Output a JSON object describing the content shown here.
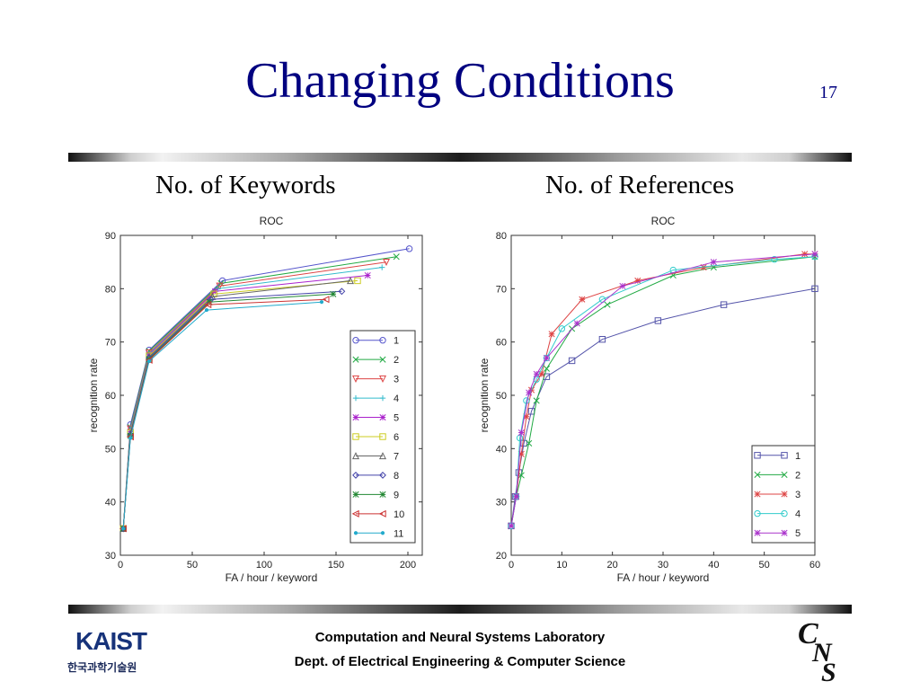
{
  "slide": {
    "title": "Changing Conditions",
    "page_number": "17",
    "subtitle_left": "No. of Keywords",
    "subtitle_right": "No. of References"
  },
  "footer": {
    "line1": "Computation and Neural Systems Laboratory",
    "line2": "Dept. of Electrical Engineering & Computer Science",
    "logo_left_main": "KAIST",
    "logo_left_sub": "한국과학기술원",
    "logo_right": "CNS"
  },
  "chart_data": [
    {
      "type": "line",
      "title": "ROC",
      "xlabel": "FA / hour / keyword",
      "ylabel": "recognition rate",
      "xlim": [
        0,
        210
      ],
      "ylim": [
        30,
        90
      ],
      "xticks": [
        0,
        50,
        100,
        150,
        200
      ],
      "yticks": [
        30,
        40,
        50,
        60,
        70,
        80,
        90
      ],
      "grid": false,
      "legend": "right-center",
      "series": [
        {
          "name": "1",
          "color": "#5555cc",
          "marker": "circle",
          "points": [
            [
              2,
              35
            ],
            [
              7,
              54.5
            ],
            [
              20,
              68.5
            ],
            [
              71,
              81.5
            ],
            [
              201,
              87.5
            ]
          ]
        },
        {
          "name": "2",
          "color": "#22aa44",
          "marker": "x",
          "points": [
            [
              2,
              35
            ],
            [
              7,
              54
            ],
            [
              20,
              68.3
            ],
            [
              70,
              81
            ],
            [
              192,
              86
            ]
          ]
        },
        {
          "name": "3",
          "color": "#dd4444",
          "marker": "tri-down",
          "points": [
            [
              2,
              35
            ],
            [
              7,
              53.7
            ],
            [
              20,
              68
            ],
            [
              69,
              80.5
            ],
            [
              185,
              85
            ]
          ]
        },
        {
          "name": "4",
          "color": "#33bbcc",
          "marker": "plus",
          "points": [
            [
              2,
              35
            ],
            [
              7,
              53.5
            ],
            [
              20,
              67.8
            ],
            [
              68,
              80
            ],
            [
              182,
              84
            ]
          ]
        },
        {
          "name": "5",
          "color": "#aa22cc",
          "marker": "star",
          "points": [
            [
              2,
              35
            ],
            [
              7,
              53.2
            ],
            [
              20,
              67.6
            ],
            [
              66,
              79.5
            ],
            [
              172,
              82.5
            ]
          ]
        },
        {
          "name": "6",
          "color": "#cccc22",
          "marker": "square",
          "points": [
            [
              2,
              35
            ],
            [
              7,
              53
            ],
            [
              20,
              67.4
            ],
            [
              65,
              79
            ],
            [
              165,
              81.5
            ]
          ]
        },
        {
          "name": "7",
          "color": "#666666",
          "marker": "tri-up",
          "points": [
            [
              2,
              35
            ],
            [
              7,
              52.8
            ],
            [
              20,
              67.2
            ],
            [
              64,
              78.5
            ],
            [
              160,
              81.5
            ]
          ]
        },
        {
          "name": "8",
          "color": "#4444aa",
          "marker": "diamond",
          "points": [
            [
              2,
              35
            ],
            [
              7,
              52.6
            ],
            [
              20,
              67
            ],
            [
              63,
              78
            ],
            [
              154,
              79.5
            ]
          ]
        },
        {
          "name": "9",
          "color": "#228833",
          "marker": "star",
          "points": [
            [
              2,
              35
            ],
            [
              7,
              52.4
            ],
            [
              20,
              66.8
            ],
            [
              62,
              77.5
            ],
            [
              148,
              79
            ]
          ]
        },
        {
          "name": "10",
          "color": "#cc3333",
          "marker": "tri-left",
          "points": [
            [
              2,
              35
            ],
            [
              7,
              52.2
            ],
            [
              20,
              66.6
            ],
            [
              61,
              77
            ],
            [
              143,
              78
            ]
          ]
        },
        {
          "name": "11",
          "color": "#22aacc",
          "marker": "dot",
          "points": [
            [
              2,
              35
            ],
            [
              7,
              52
            ],
            [
              20,
              66.4
            ],
            [
              60,
              76
            ],
            [
              140,
              77.5
            ]
          ]
        }
      ]
    },
    {
      "type": "line",
      "title": "ROC",
      "xlabel": "FA / hour / keyword",
      "ylabel": "recognition rate",
      "xlim": [
        0,
        60
      ],
      "ylim": [
        20,
        80
      ],
      "xticks": [
        0,
        10,
        20,
        30,
        40,
        50,
        60
      ],
      "yticks": [
        20,
        30,
        40,
        50,
        60,
        70,
        80
      ],
      "grid": false,
      "legend": "bottom-right",
      "series": [
        {
          "name": "1",
          "color": "#5555aa",
          "marker": "square",
          "points": [
            [
              0,
              25.5
            ],
            [
              0.8,
              31
            ],
            [
              1.5,
              35.5
            ],
            [
              2.5,
              41
            ],
            [
              4,
              47
            ],
            [
              7,
              53.5
            ],
            [
              12,
              56.5
            ],
            [
              18,
              60.5
            ],
            [
              29,
              64
            ],
            [
              42,
              67
            ],
            [
              60,
              70
            ]
          ]
        },
        {
          "name": "2",
          "color": "#22aa44",
          "marker": "x",
          "points": [
            [
              0,
              25.5
            ],
            [
              1,
              31
            ],
            [
              2,
              35
            ],
            [
              3.5,
              41
            ],
            [
              5,
              49
            ],
            [
              7,
              55
            ],
            [
              12,
              62.5
            ],
            [
              19,
              67
            ],
            [
              32,
              72.5
            ],
            [
              40,
              74
            ],
            [
              60,
              76
            ]
          ]
        },
        {
          "name": "3",
          "color": "#dd4444",
          "marker": "star",
          "points": [
            [
              0,
              25.5
            ],
            [
              1,
              31
            ],
            [
              2,
              39
            ],
            [
              3,
              46
            ],
            [
              4,
              51
            ],
            [
              6,
              54
            ],
            [
              8,
              61.5
            ],
            [
              14,
              68
            ],
            [
              25,
              71.5
            ],
            [
              38,
              74
            ],
            [
              58,
              76.5
            ],
            [
              60,
              76.5
            ]
          ]
        },
        {
          "name": "4",
          "color": "#33cccc",
          "marker": "circle",
          "points": [
            [
              0,
              25.5
            ],
            [
              1,
              31
            ],
            [
              1.7,
              42
            ],
            [
              3,
              49
            ],
            [
              5,
              53
            ],
            [
              7,
              57
            ],
            [
              10,
              62.5
            ],
            [
              18,
              68
            ],
            [
              32,
              73.5
            ],
            [
              52,
              75.5
            ],
            [
              60,
              76
            ]
          ]
        },
        {
          "name": "5",
          "color": "#aa33cc",
          "marker": "star",
          "points": [
            [
              0,
              25.5
            ],
            [
              1,
              31
            ],
            [
              2,
              43
            ],
            [
              3.5,
              50.5
            ],
            [
              5,
              54
            ],
            [
              7,
              57
            ],
            [
              13,
              63.5
            ],
            [
              22,
              70.5
            ],
            [
              40,
              75
            ],
            [
              60,
              76.5
            ]
          ]
        }
      ]
    }
  ]
}
